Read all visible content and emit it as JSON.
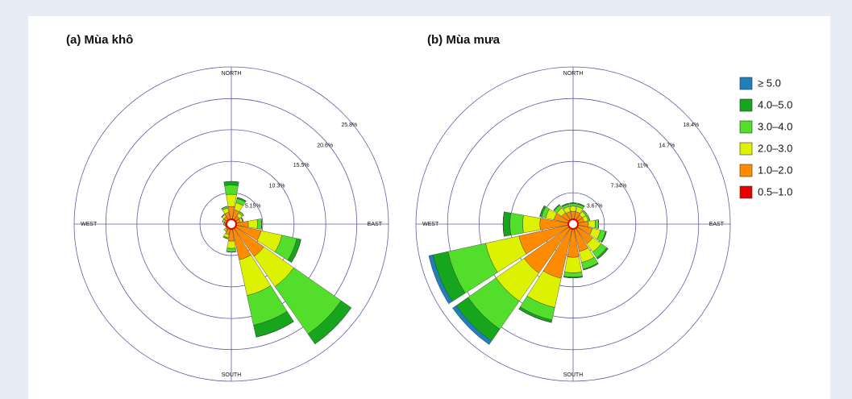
{
  "chart_data": [
    {
      "type": "windrose",
      "title": "(a) Mùa khô",
      "categories": [
        "NORTH",
        null,
        null,
        null,
        "EAST",
        null,
        null,
        null,
        "SOUTH",
        null,
        null,
        null,
        "WEST",
        null,
        null,
        null
      ],
      "series": [
        {
          "name": "≥ 5.0",
          "color": "#1f7fb8",
          "values": [
            0,
            0,
            0,
            0,
            0,
            0,
            0,
            0,
            0,
            0,
            0,
            0,
            0,
            0,
            0,
            0
          ]
        },
        {
          "name": "4.0–5.0",
          "color": "#17a51e",
          "values": [
            0.6,
            0.2,
            0,
            0,
            0,
            0.7,
            2,
            2,
            0,
            0,
            0,
            0,
            0,
            0,
            0,
            0
          ]
        },
        {
          "name": "3.0–4.0",
          "color": "#52de2a",
          "values": [
            1.5,
            0.7,
            0.3,
            0.1,
            0.7,
            2.5,
            9.5,
            5,
            0.6,
            0.2,
            0,
            0,
            0,
            0,
            0.1,
            0.3
          ]
        },
        {
          "name": "2.0–3.0",
          "color": "#dcf200",
          "values": [
            2,
            1.2,
            0.6,
            0.4,
            1.5,
            3.5,
            6,
            6,
            1.2,
            0.5,
            0.3,
            0.1,
            0.2,
            0.3,
            0.4,
            0.7
          ]
        },
        {
          "name": "1.0–2.0",
          "color": "#ff8c00",
          "values": [
            2.5,
            2,
            1.3,
            1.2,
            2.5,
            4.5,
            6,
            5.5,
            2.5,
            1.5,
            0.9,
            0.6,
            0.7,
            0.9,
            1.2,
            1.6
          ]
        },
        {
          "name": "0.5–1.0",
          "color": "#e80000",
          "values": [
            0.4,
            0.4,
            0.3,
            0.3,
            0.3,
            0.5,
            0.5,
            0.5,
            0.3,
            0.3,
            0.3,
            0.3,
            0.3,
            0.3,
            0.3,
            0.4
          ]
        }
      ],
      "rlim": [
        0,
        25.8
      ],
      "rticks": [
        {
          "value": 5.15,
          "label": "5.15%"
        },
        {
          "value": 10.3,
          "label": "10.3%"
        },
        {
          "value": 15.5,
          "label": "15.5%"
        },
        {
          "value": 20.6,
          "label": "20.6%"
        },
        {
          "value": 25.8,
          "label": "25.8%"
        }
      ]
    },
    {
      "type": "windrose",
      "title": "(b) Mùa mưa",
      "categories": [
        "NORTH",
        null,
        null,
        null,
        "EAST",
        null,
        null,
        null,
        "SOUTH",
        null,
        null,
        null,
        "WEST",
        null,
        null,
        null
      ],
      "series": [
        {
          "name": "≥ 5.0",
          "color": "#1f7fb8",
          "values": [
            0,
            0,
            0,
            0,
            0,
            0,
            0,
            0,
            0,
            0,
            0.5,
            0.5,
            0,
            0,
            0,
            0
          ]
        },
        {
          "name": "4.0–5.0",
          "color": "#17a51e",
          "values": [
            0.1,
            0.1,
            0,
            0,
            0,
            0.1,
            0.2,
            0.1,
            0.1,
            0.3,
            1.7,
            1.8,
            0.8,
            0.2,
            0.1,
            0.1
          ]
        },
        {
          "name": "3.0–4.0",
          "color": "#52de2a",
          "values": [
            0.3,
            0.3,
            0.2,
            0.2,
            0.4,
            0.6,
            0.8,
            0.8,
            0.5,
            1.5,
            4,
            4.5,
            1.5,
            0.5,
            0.4,
            0.3
          ]
        },
        {
          "name": "2.0–3.0",
          "color": "#dcf200",
          "values": [
            0.6,
            0.6,
            0.5,
            0.5,
            0.8,
            1,
            1.2,
            1.3,
            1.8,
            3.5,
            4,
            4,
            2,
            1,
            0.7,
            0.6
          ]
        },
        {
          "name": "1.0–2.0",
          "color": "#ff8c00",
          "values": [
            1.2,
            1.2,
            1,
            1,
            1.5,
            2,
            2.5,
            3,
            3.5,
            6,
            6.5,
            6,
            3.5,
            2,
            1.3,
            1.2
          ]
        },
        {
          "name": "0.5–1.0",
          "color": "#e80000",
          "values": [
            0.3,
            0.3,
            0.3,
            0.3,
            0.3,
            0.3,
            0.3,
            0.3,
            0.4,
            0.5,
            0.5,
            0.5,
            0.4,
            0.3,
            0.3,
            0.3
          ]
        }
      ],
      "rlim": [
        0,
        18.4
      ],
      "rticks": [
        {
          "value": 3.67,
          "label": "3.67%"
        },
        {
          "value": 7.34,
          "label": "7.34%"
        },
        {
          "value": 11,
          "label": "11%"
        },
        {
          "value": 14.7,
          "label": "14.7%"
        },
        {
          "value": 18.4,
          "label": "18.4%"
        }
      ],
      "legend": true
    }
  ]
}
